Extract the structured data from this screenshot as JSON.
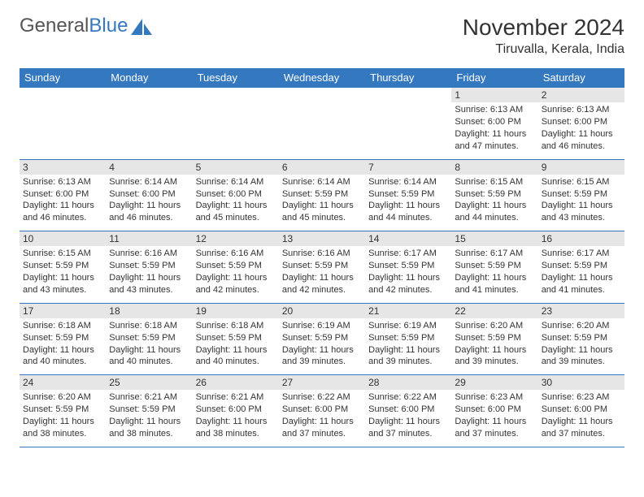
{
  "brand": {
    "part1": "General",
    "part2": "Blue"
  },
  "title": "November 2024",
  "location": "Tiruvalla, Kerala, India",
  "colors": {
    "header_bg": "#3478c0",
    "header_text": "#ffffff",
    "daynum_bg": "#e6e6e6",
    "border": "#3478c0",
    "text": "#333333",
    "background": "#ffffff"
  },
  "columns": [
    "Sunday",
    "Monday",
    "Tuesday",
    "Wednesday",
    "Thursday",
    "Friday",
    "Saturday"
  ],
  "weeks": [
    [
      {
        "day": "",
        "sunrise": "",
        "sunset": "",
        "daylight": ""
      },
      {
        "day": "",
        "sunrise": "",
        "sunset": "",
        "daylight": ""
      },
      {
        "day": "",
        "sunrise": "",
        "sunset": "",
        "daylight": ""
      },
      {
        "day": "",
        "sunrise": "",
        "sunset": "",
        "daylight": ""
      },
      {
        "day": "",
        "sunrise": "",
        "sunset": "",
        "daylight": ""
      },
      {
        "day": "1",
        "sunrise": "Sunrise: 6:13 AM",
        "sunset": "Sunset: 6:00 PM",
        "daylight": "Daylight: 11 hours and 47 minutes."
      },
      {
        "day": "2",
        "sunrise": "Sunrise: 6:13 AM",
        "sunset": "Sunset: 6:00 PM",
        "daylight": "Daylight: 11 hours and 46 minutes."
      }
    ],
    [
      {
        "day": "3",
        "sunrise": "Sunrise: 6:13 AM",
        "sunset": "Sunset: 6:00 PM",
        "daylight": "Daylight: 11 hours and 46 minutes."
      },
      {
        "day": "4",
        "sunrise": "Sunrise: 6:14 AM",
        "sunset": "Sunset: 6:00 PM",
        "daylight": "Daylight: 11 hours and 46 minutes."
      },
      {
        "day": "5",
        "sunrise": "Sunrise: 6:14 AM",
        "sunset": "Sunset: 6:00 PM",
        "daylight": "Daylight: 11 hours and 45 minutes."
      },
      {
        "day": "6",
        "sunrise": "Sunrise: 6:14 AM",
        "sunset": "Sunset: 5:59 PM",
        "daylight": "Daylight: 11 hours and 45 minutes."
      },
      {
        "day": "7",
        "sunrise": "Sunrise: 6:14 AM",
        "sunset": "Sunset: 5:59 PM",
        "daylight": "Daylight: 11 hours and 44 minutes."
      },
      {
        "day": "8",
        "sunrise": "Sunrise: 6:15 AM",
        "sunset": "Sunset: 5:59 PM",
        "daylight": "Daylight: 11 hours and 44 minutes."
      },
      {
        "day": "9",
        "sunrise": "Sunrise: 6:15 AM",
        "sunset": "Sunset: 5:59 PM",
        "daylight": "Daylight: 11 hours and 43 minutes."
      }
    ],
    [
      {
        "day": "10",
        "sunrise": "Sunrise: 6:15 AM",
        "sunset": "Sunset: 5:59 PM",
        "daylight": "Daylight: 11 hours and 43 minutes."
      },
      {
        "day": "11",
        "sunrise": "Sunrise: 6:16 AM",
        "sunset": "Sunset: 5:59 PM",
        "daylight": "Daylight: 11 hours and 43 minutes."
      },
      {
        "day": "12",
        "sunrise": "Sunrise: 6:16 AM",
        "sunset": "Sunset: 5:59 PM",
        "daylight": "Daylight: 11 hours and 42 minutes."
      },
      {
        "day": "13",
        "sunrise": "Sunrise: 6:16 AM",
        "sunset": "Sunset: 5:59 PM",
        "daylight": "Daylight: 11 hours and 42 minutes."
      },
      {
        "day": "14",
        "sunrise": "Sunrise: 6:17 AM",
        "sunset": "Sunset: 5:59 PM",
        "daylight": "Daylight: 11 hours and 42 minutes."
      },
      {
        "day": "15",
        "sunrise": "Sunrise: 6:17 AM",
        "sunset": "Sunset: 5:59 PM",
        "daylight": "Daylight: 11 hours and 41 minutes."
      },
      {
        "day": "16",
        "sunrise": "Sunrise: 6:17 AM",
        "sunset": "Sunset: 5:59 PM",
        "daylight": "Daylight: 11 hours and 41 minutes."
      }
    ],
    [
      {
        "day": "17",
        "sunrise": "Sunrise: 6:18 AM",
        "sunset": "Sunset: 5:59 PM",
        "daylight": "Daylight: 11 hours and 40 minutes."
      },
      {
        "day": "18",
        "sunrise": "Sunrise: 6:18 AM",
        "sunset": "Sunset: 5:59 PM",
        "daylight": "Daylight: 11 hours and 40 minutes."
      },
      {
        "day": "19",
        "sunrise": "Sunrise: 6:18 AM",
        "sunset": "Sunset: 5:59 PM",
        "daylight": "Daylight: 11 hours and 40 minutes."
      },
      {
        "day": "20",
        "sunrise": "Sunrise: 6:19 AM",
        "sunset": "Sunset: 5:59 PM",
        "daylight": "Daylight: 11 hours and 39 minutes."
      },
      {
        "day": "21",
        "sunrise": "Sunrise: 6:19 AM",
        "sunset": "Sunset: 5:59 PM",
        "daylight": "Daylight: 11 hours and 39 minutes."
      },
      {
        "day": "22",
        "sunrise": "Sunrise: 6:20 AM",
        "sunset": "Sunset: 5:59 PM",
        "daylight": "Daylight: 11 hours and 39 minutes."
      },
      {
        "day": "23",
        "sunrise": "Sunrise: 6:20 AM",
        "sunset": "Sunset: 5:59 PM",
        "daylight": "Daylight: 11 hours and 39 minutes."
      }
    ],
    [
      {
        "day": "24",
        "sunrise": "Sunrise: 6:20 AM",
        "sunset": "Sunset: 5:59 PM",
        "daylight": "Daylight: 11 hours and 38 minutes."
      },
      {
        "day": "25",
        "sunrise": "Sunrise: 6:21 AM",
        "sunset": "Sunset: 5:59 PM",
        "daylight": "Daylight: 11 hours and 38 minutes."
      },
      {
        "day": "26",
        "sunrise": "Sunrise: 6:21 AM",
        "sunset": "Sunset: 6:00 PM",
        "daylight": "Daylight: 11 hours and 38 minutes."
      },
      {
        "day": "27",
        "sunrise": "Sunrise: 6:22 AM",
        "sunset": "Sunset: 6:00 PM",
        "daylight": "Daylight: 11 hours and 37 minutes."
      },
      {
        "day": "28",
        "sunrise": "Sunrise: 6:22 AM",
        "sunset": "Sunset: 6:00 PM",
        "daylight": "Daylight: 11 hours and 37 minutes."
      },
      {
        "day": "29",
        "sunrise": "Sunrise: 6:23 AM",
        "sunset": "Sunset: 6:00 PM",
        "daylight": "Daylight: 11 hours and 37 minutes."
      },
      {
        "day": "30",
        "sunrise": "Sunrise: 6:23 AM",
        "sunset": "Sunset: 6:00 PM",
        "daylight": "Daylight: 11 hours and 37 minutes."
      }
    ]
  ]
}
